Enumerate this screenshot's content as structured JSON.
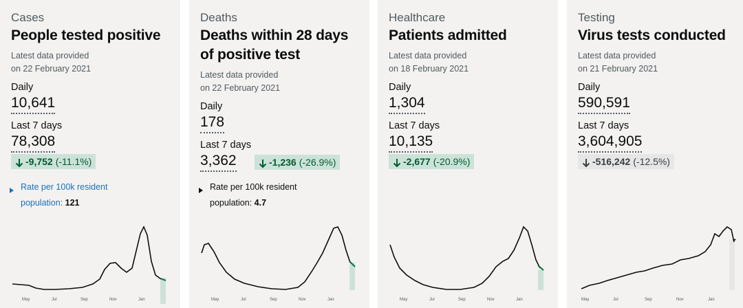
{
  "cards": [
    {
      "caption": "Cases",
      "title": "People tested positive",
      "updated_line1": "Latest data provided",
      "updated_line2": "on 22 February 2021",
      "daily_label": "Daily",
      "daily_value": "10,641",
      "week_label": "Last 7 days",
      "week_value": "78,308",
      "change_value": "-9,752",
      "change_pct": "(-11.1%)",
      "change_color": "#005a30",
      "rate_line1": "Rate per 100k resident",
      "rate_line2": "population:",
      "rate_value": "121",
      "axis": [
        "May",
        "Jul",
        "Sep",
        "Nov",
        "Jan"
      ]
    },
    {
      "caption": "Deaths",
      "title_line1": "Deaths within 28 days",
      "title_line2": "of positive test",
      "updated_line1": "Latest data provided",
      "updated_line2": "on 22 February 2021",
      "daily_label": "Daily",
      "daily_value": "178",
      "week_label": "Last 7 days",
      "week_value": "3,362",
      "change_value": "-1,236",
      "change_pct": "(-26.9%)",
      "change_color": "#005a30",
      "rate_line1": "Rate per 100k resident",
      "rate_line2": "population:",
      "rate_value": "4.7",
      "axis": [
        "May",
        "Jul",
        "Sep",
        "Nov",
        "Jan"
      ]
    },
    {
      "caption": "Healthcare",
      "title": "Patients admitted",
      "updated_line1": "Latest data provided",
      "updated_line2": "on 18 February 2021",
      "daily_label": "Daily",
      "daily_value": "1,304",
      "week_label": "Last 7 days",
      "week_value": "10,135",
      "change_value": "-2,677",
      "change_pct": "(-20.9%)",
      "change_color": "#005a30",
      "axis": [
        "May",
        "Jul",
        "Sep",
        "Nov",
        "Jan"
      ]
    },
    {
      "caption": "Testing",
      "title": "Virus tests conducted",
      "updated_line1": "Latest data provided",
      "updated_line2": "on 21 February 2021",
      "daily_label": "Daily",
      "daily_value": "590,591",
      "week_label": "Last 7 days",
      "week_value": "3,604,905",
      "change_value": "-516,242",
      "change_pct": "(-12.5%)",
      "change_color": "#383f43",
      "axis": [
        "May",
        "Jul",
        "Sep",
        "Nov",
        "Jan"
      ]
    }
  ],
  "colors": {
    "line": "#0b0c0c",
    "highlight_green": "#00703c",
    "highlight_green_fill": "#cce2d8",
    "highlight_grey_fill": "#e6e6e6",
    "card_bg": "#f3f2f1",
    "link": "#1d70b8"
  }
}
